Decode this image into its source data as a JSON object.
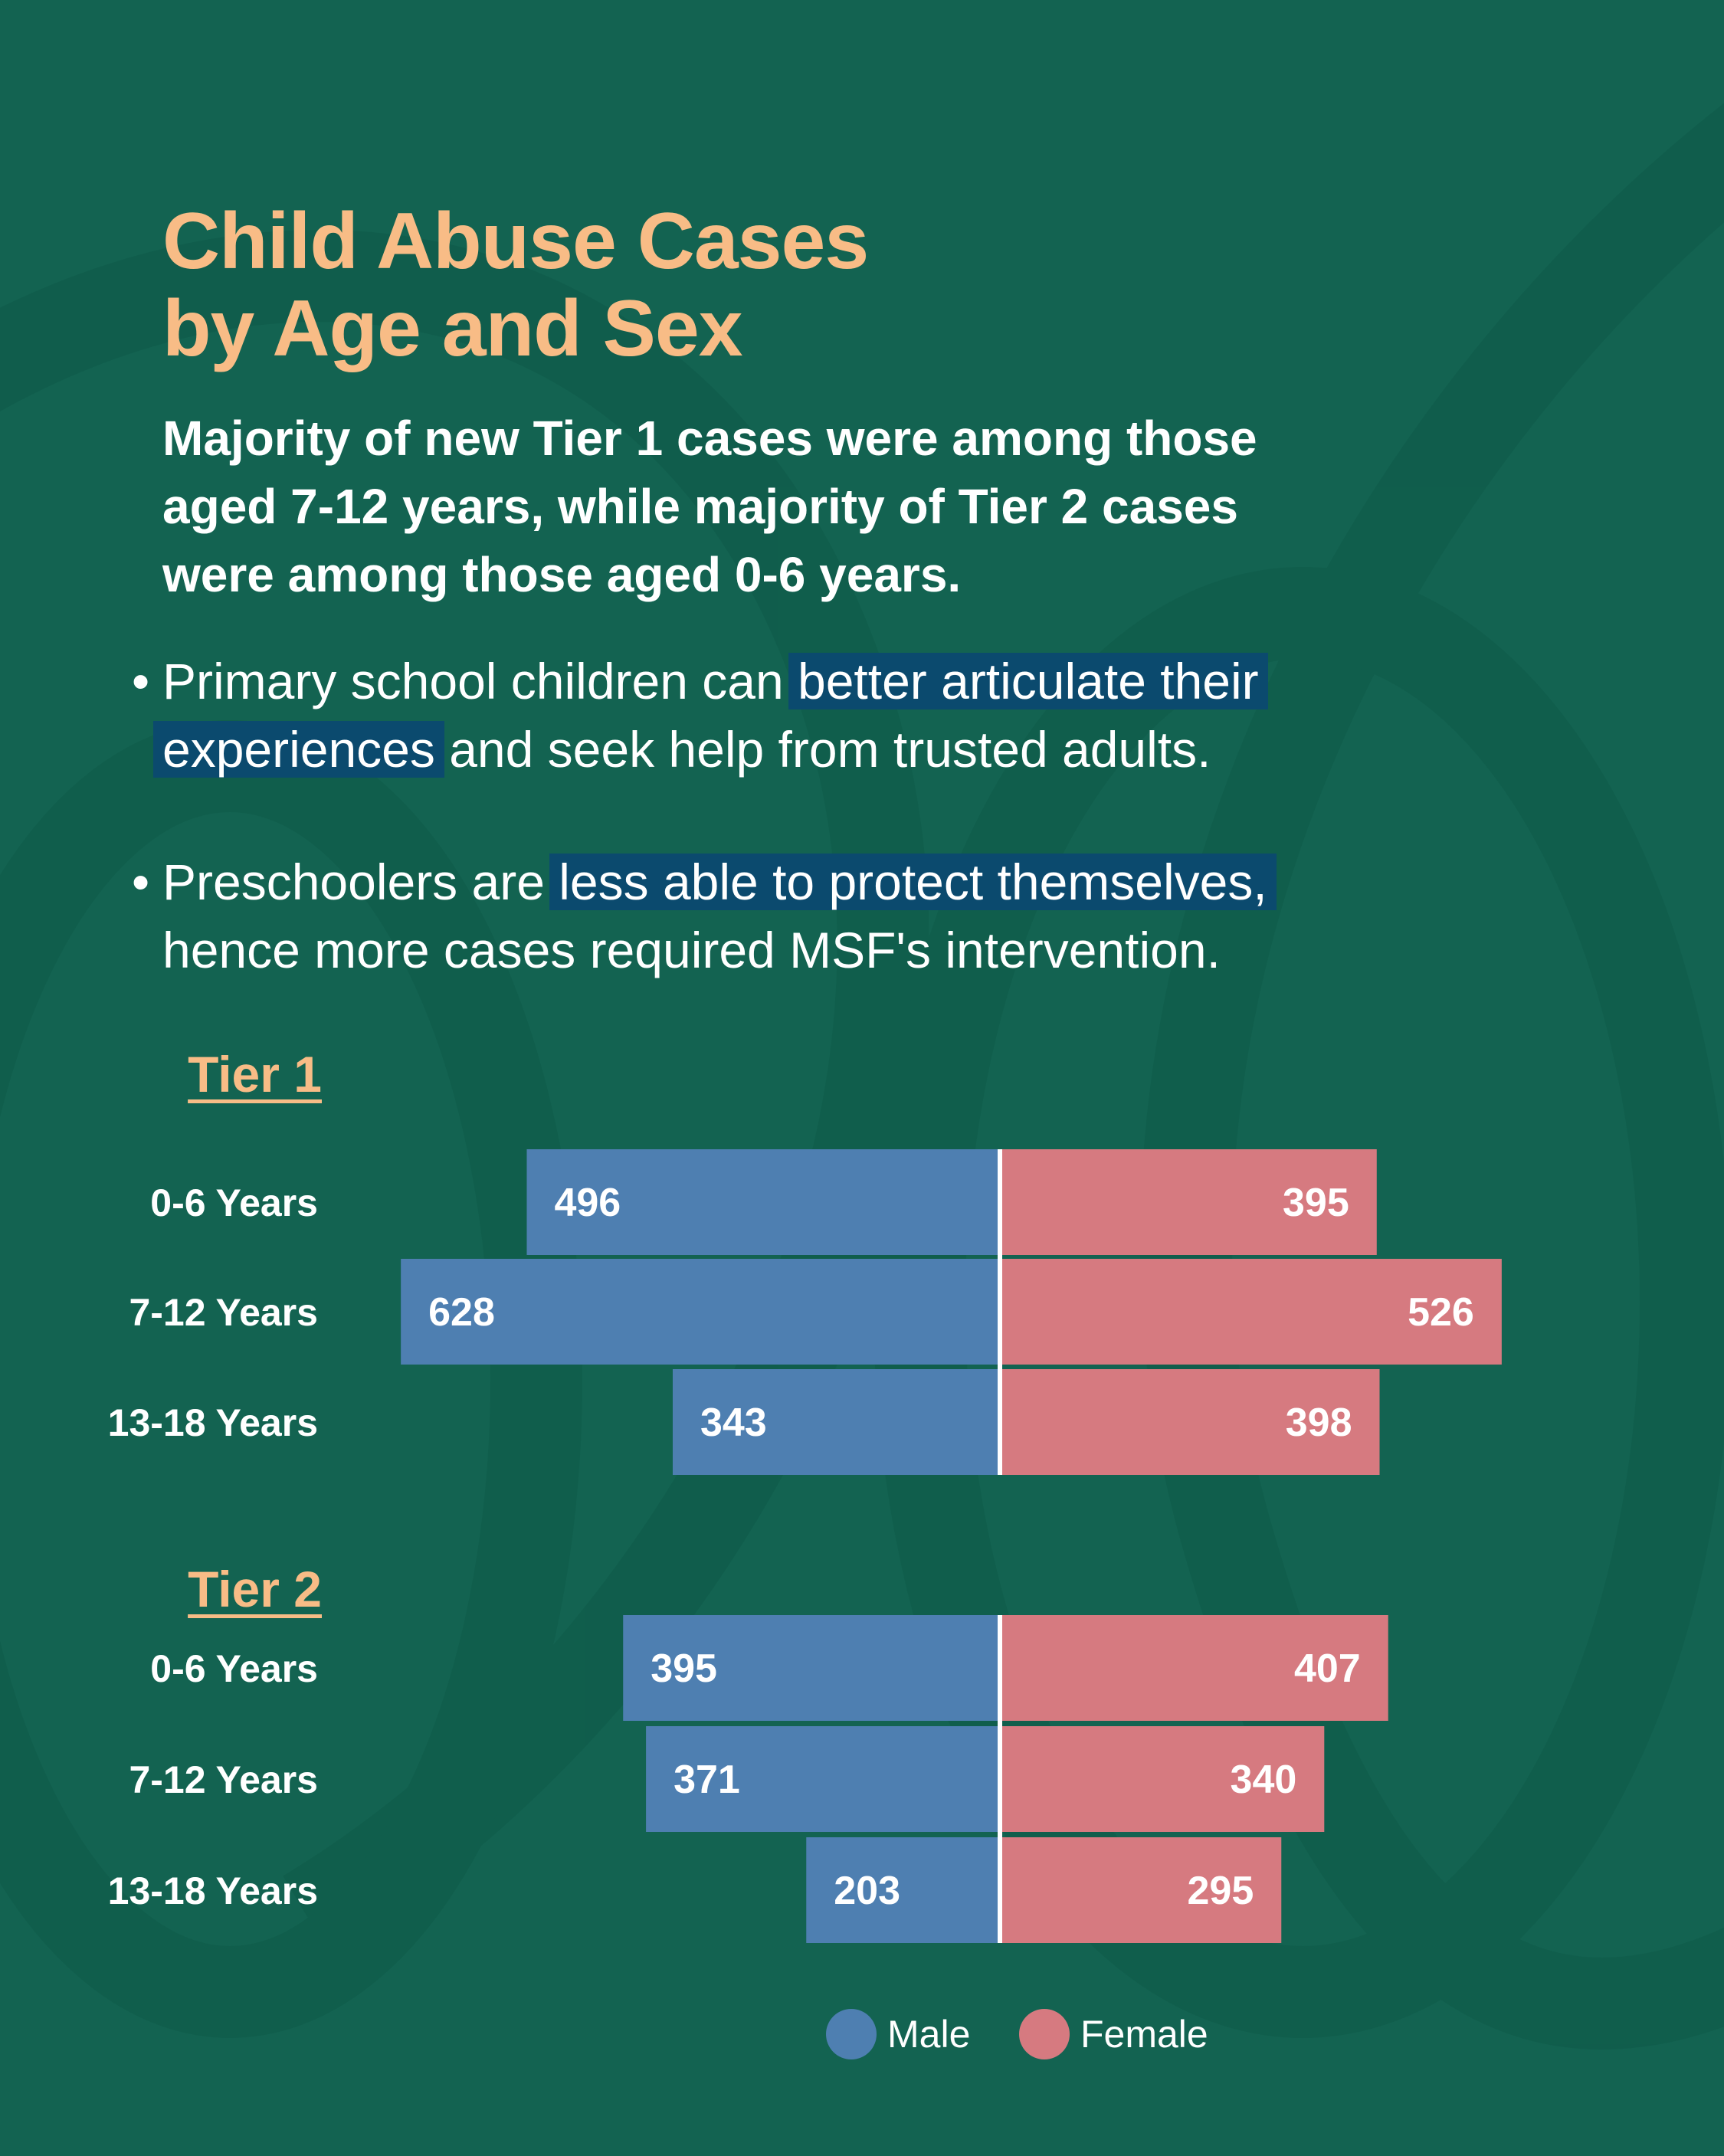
{
  "title": {
    "line1": "Child Abuse Cases",
    "line2": "by Age and Sex"
  },
  "subtitle": {
    "line1": "Majority of new Tier 1 cases were among those",
    "line2": "aged 7-12 years, while majority of Tier 2 cases",
    "line3": "were among those aged 0-6 years."
  },
  "bullets": [
    {
      "pre": "Primary school children can ",
      "hl1": "better articulate their",
      "hl2": "experiences",
      "post": " and seek help from trusted adults."
    },
    {
      "pre": "Preschoolers are ",
      "hl1": "less able to protect themselves,",
      "post": "hence more cases required MSF's intervention."
    }
  ],
  "colors": {
    "background": "#136351",
    "male": "#4e7fb1",
    "female": "#d67a80",
    "accent": "#f8bc86",
    "highlight": "#0b4a6e"
  },
  "chart_data": [
    {
      "type": "bar",
      "title": "Tier 1",
      "categories": [
        "0-6 Years",
        "7-12 Years",
        "13-18 Years"
      ],
      "series": [
        {
          "name": "Male",
          "values": [
            496,
            628,
            343
          ]
        },
        {
          "name": "Female",
          "values": [
            395,
            526,
            398
          ]
        }
      ]
    },
    {
      "type": "bar",
      "title": "Tier 2",
      "categories": [
        "0-6 Years",
        "7-12 Years",
        "13-18 Years"
      ],
      "series": [
        {
          "name": "Male",
          "values": [
            395,
            371,
            203
          ]
        },
        {
          "name": "Female",
          "values": [
            407,
            340,
            295
          ]
        }
      ]
    }
  ],
  "legend": {
    "male": "Male",
    "female": "Female"
  }
}
